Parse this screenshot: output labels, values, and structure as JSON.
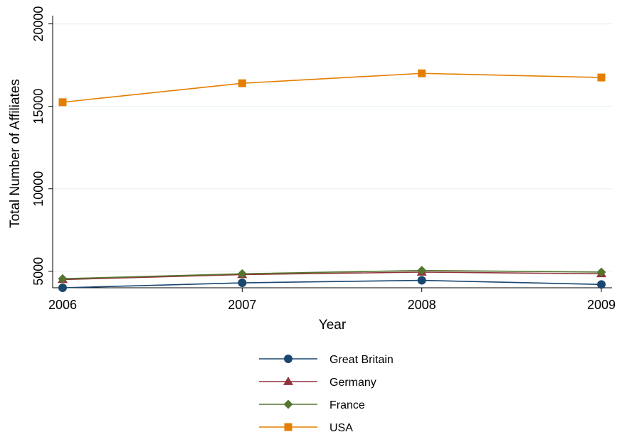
{
  "chart_data": {
    "type": "line",
    "title": "",
    "xlabel": "Year",
    "ylabel": "Total Number of Affiliates",
    "x": [
      2006,
      2007,
      2008,
      2009
    ],
    "x_ticks": [
      "2006",
      "2007",
      "2008",
      "2009"
    ],
    "y_ticks": [
      "5000",
      "10000",
      "15000",
      "20000"
    ],
    "y_tick_values": [
      5000,
      10000,
      15000,
      20000
    ],
    "ylim": [
      4000,
      20500
    ],
    "grid": "horizontal",
    "legend_position": "bottom",
    "series": [
      {
        "name": "Great Britain",
        "values": [
          4000,
          4300,
          4450,
          4200
        ],
        "color": "#1a476f",
        "marker": "circle"
      },
      {
        "name": "Germany",
        "values": [
          4500,
          4800,
          4950,
          4850
        ],
        "color": "#90353b",
        "marker": "triangle"
      },
      {
        "name": "France",
        "values": [
          4550,
          4850,
          5050,
          4950
        ],
        "color": "#55752f",
        "marker": "diamond"
      },
      {
        "name": "USA",
        "values": [
          15250,
          16400,
          17000,
          16750
        ],
        "color": "#e37e00",
        "marker": "square"
      }
    ]
  }
}
